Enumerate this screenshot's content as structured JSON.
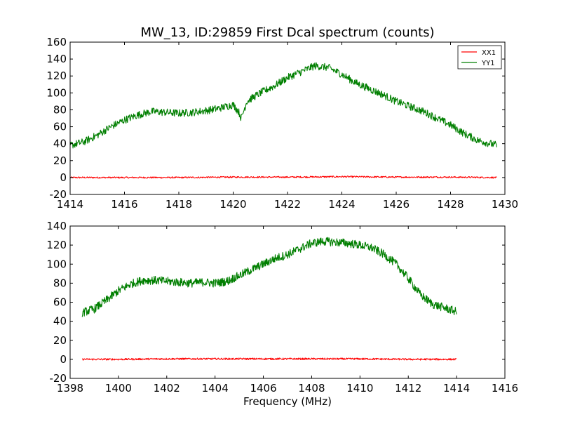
{
  "figure": {
    "title": "MW_13, ID:29859 First Dcal spectrum (counts)",
    "xlabel": "Frequency (MHz)"
  },
  "colors": {
    "xx": "#ff0000",
    "yy": "#007f00",
    "axes": "#000000",
    "background": "#ffffff"
  },
  "legend": {
    "placement": "top-right",
    "entries": [
      "XX1",
      "YY1"
    ]
  },
  "chart_data": [
    {
      "type": "line",
      "title": "MW_13, ID:29859 First Dcal spectrum (counts)",
      "xlabel": "",
      "ylabel": "",
      "xlim": [
        1414,
        1430
      ],
      "ylim": [
        -20,
        160
      ],
      "xticks": [
        "1414",
        "1416",
        "1418",
        "1420",
        "1422",
        "1424",
        "1426",
        "1428",
        "1430"
      ],
      "yticks": [
        "-20",
        "0",
        "20",
        "40",
        "60",
        "80",
        "100",
        "120",
        "140",
        "160"
      ],
      "legend": "top-right",
      "grid": false,
      "series": [
        {
          "name": "XX1",
          "color": "#ff0000",
          "x": [
            1414.0,
            1416.0,
            1418.0,
            1420.0,
            1422.0,
            1424.0,
            1426.0,
            1428.0,
            1429.7
          ],
          "y": [
            0,
            0,
            0,
            0.5,
            0.5,
            1,
            0.5,
            0.5,
            0
          ]
        },
        {
          "name": "YY1",
          "color": "#007f00",
          "x": [
            1414.0,
            1414.5,
            1415.0,
            1415.5,
            1416.0,
            1416.5,
            1417.0,
            1417.5,
            1418.0,
            1418.5,
            1419.0,
            1419.5,
            1420.0,
            1420.2,
            1420.3,
            1420.5,
            1421.0,
            1421.5,
            1422.0,
            1422.5,
            1423.0,
            1423.5,
            1424.0,
            1424.5,
            1425.0,
            1425.5,
            1426.0,
            1426.5,
            1427.0,
            1427.5,
            1428.0,
            1428.5,
            1429.0,
            1429.7
          ],
          "y": [
            38,
            42,
            50,
            60,
            68,
            74,
            78,
            77,
            76,
            77,
            79,
            82,
            86,
            78,
            70,
            90,
            100,
            108,
            118,
            125,
            132,
            130,
            122,
            112,
            105,
            98,
            90,
            84,
            78,
            70,
            62,
            52,
            44,
            38
          ]
        }
      ]
    },
    {
      "type": "line",
      "title": "",
      "xlabel": "Frequency (MHz)",
      "ylabel": "",
      "xlim": [
        1398,
        1416
      ],
      "ylim": [
        -20,
        140
      ],
      "xticks": [
        "1398",
        "1400",
        "1402",
        "1404",
        "1406",
        "1408",
        "1410",
        "1412",
        "1414",
        "1416"
      ],
      "yticks": [
        "-20",
        "0",
        "20",
        "40",
        "60",
        "80",
        "100",
        "120",
        "140"
      ],
      "legend": "none",
      "grid": false,
      "series": [
        {
          "name": "XX1",
          "color": "#ff0000",
          "x": [
            1398.5,
            1400.0,
            1402.0,
            1404.0,
            1406.0,
            1408.0,
            1410.0,
            1412.0,
            1414.0
          ],
          "y": [
            0,
            0,
            0.5,
            0.5,
            0.5,
            0.5,
            0.5,
            0,
            0
          ]
        },
        {
          "name": "YY1",
          "color": "#007f00",
          "x": [
            1398.5,
            1399.0,
            1399.5,
            1400.0,
            1400.5,
            1401.0,
            1401.5,
            1402.0,
            1402.5,
            1403.0,
            1403.5,
            1404.0,
            1404.5,
            1405.0,
            1405.5,
            1406.0,
            1406.5,
            1407.0,
            1407.5,
            1408.0,
            1408.5,
            1409.0,
            1409.5,
            1410.0,
            1410.5,
            1411.0,
            1411.5,
            1412.0,
            1412.5,
            1413.0,
            1413.5,
            1414.0
          ],
          "y": [
            49,
            53,
            62,
            72,
            79,
            83,
            83,
            82,
            81,
            80,
            81,
            80,
            82,
            88,
            94,
            100,
            106,
            110,
            116,
            122,
            124,
            123,
            122,
            120,
            117,
            110,
            100,
            85,
            68,
            58,
            54,
            50
          ]
        }
      ]
    }
  ]
}
